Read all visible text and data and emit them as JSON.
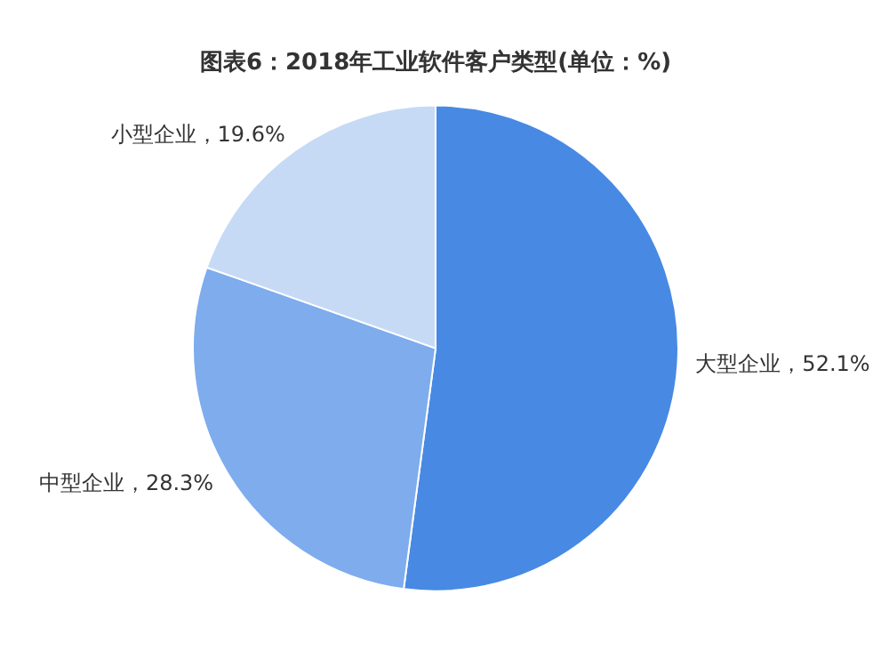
{
  "chart_data": {
    "type": "pie",
    "title": "图表6：2018年工业软件客户类型(单位：%)",
    "categories": [
      "大型企业",
      "中型企业",
      "小型企业"
    ],
    "values": [
      52.1,
      28.3,
      19.6
    ],
    "colors": [
      "#4889e4",
      "#7eaced",
      "#c6daf6"
    ],
    "value_labels": [
      "52.1%",
      "28.3%",
      "19.6%"
    ],
    "legend": false
  }
}
